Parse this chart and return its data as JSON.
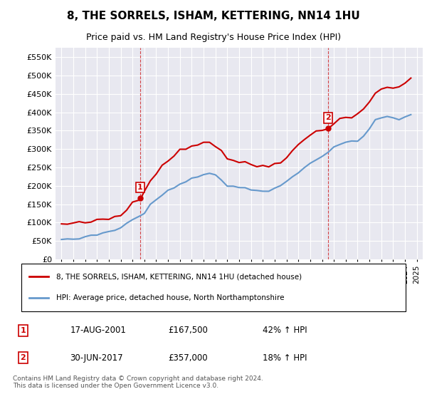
{
  "title": "8, THE SORRELS, ISHAM, KETTERING, NN14 1HU",
  "subtitle": "Price paid vs. HM Land Registry's House Price Index (HPI)",
  "ylim": [
    0,
    575000
  ],
  "yticks": [
    0,
    50000,
    100000,
    150000,
    200000,
    250000,
    300000,
    350000,
    400000,
    450000,
    500000,
    550000
  ],
  "ytick_labels": [
    "£0",
    "£50K",
    "£100K",
    "£150K",
    "£200K",
    "£250K",
    "£300K",
    "£350K",
    "£400K",
    "£450K",
    "£500K",
    "£550K"
  ],
  "sale1_date": 2001.63,
  "sale1_price": 167500,
  "sale1_label": "1",
  "sale2_date": 2017.5,
  "sale2_price": 357000,
  "sale2_label": "2",
  "legend_line1": "8, THE SORRELS, ISHAM, KETTERING, NN14 1HU (detached house)",
  "legend_line2": "HPI: Average price, detached house, North Northamptonshire",
  "table_row1": [
    "1",
    "17-AUG-2001",
    "£167,500",
    "42% ↑ HPI"
  ],
  "table_row2": [
    "2",
    "30-JUN-2017",
    "£357,000",
    "18% ↑ HPI"
  ],
  "footnote": "Contains HM Land Registry data © Crown copyright and database right 2024.\nThis data is licensed under the Open Government Licence v3.0.",
  "red_color": "#cc0000",
  "blue_color": "#6699cc",
  "plot_bg_color": "#e8e8f0",
  "grid_color": "#ffffff"
}
